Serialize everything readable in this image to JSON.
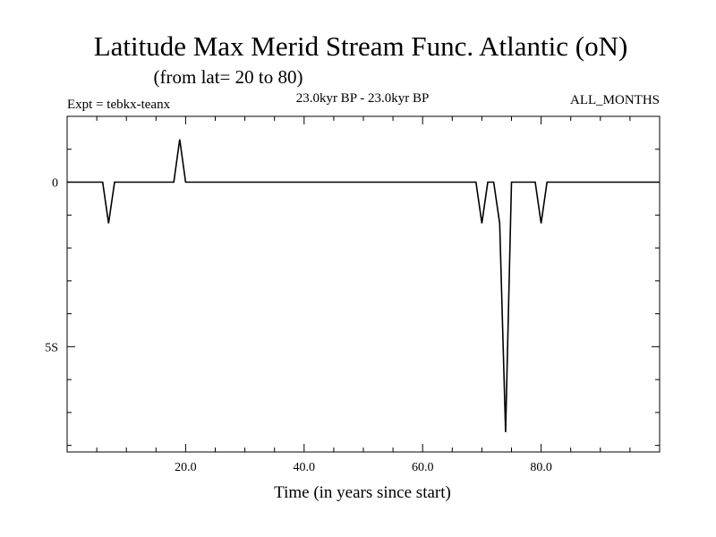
{
  "chart_data": {
    "type": "line",
    "title": "Latitude Max Merid Stream Func. Atlantic (oN)",
    "subtitle": "(from lat= 20 to 80)",
    "left_annotation": "Expt = tebkx-teanx",
    "center_annotation": "23.0kyr BP - 23.0kyr BP",
    "right_annotation": "ALL_MONTHS",
    "xlabel": "Time (in years since start)",
    "ylabel": "",
    "xlim": [
      0,
      100
    ],
    "ylim": [
      -8.2,
      2.0
    ],
    "x_ticks": [
      20,
      40,
      60,
      80
    ],
    "x_tick_labels": [
      "20.0",
      "40.0",
      "60.0",
      "80.0"
    ],
    "y_ticks": [
      0,
      -5
    ],
    "y_tick_labels": [
      "0",
      "5S"
    ],
    "grid": false,
    "series": [
      {
        "x": [
          0,
          6,
          7,
          8,
          9,
          18,
          19,
          20,
          21,
          68,
          69,
          70,
          71,
          72,
          73,
          74,
          75,
          76,
          79,
          80,
          81,
          82,
          100
        ],
        "values": [
          0,
          0,
          -1.25,
          0,
          0,
          0,
          1.3,
          0,
          0,
          0,
          0,
          -1.25,
          0,
          0,
          -1.25,
          -7.6,
          0,
          0,
          0,
          -1.25,
          0,
          0,
          0
        ]
      }
    ]
  }
}
